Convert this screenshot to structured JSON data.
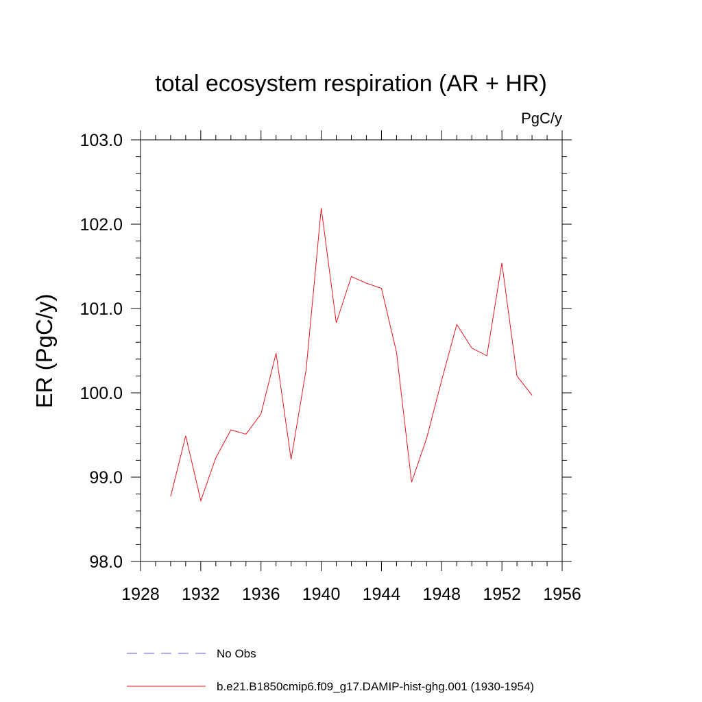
{
  "chart_data": {
    "type": "line",
    "title": "total ecosystem respiration (AR + HR)",
    "units": "PgC/y",
    "ylabel": "ER  (PgC/y)",
    "xlabel": "",
    "xlim": [
      1928,
      1956
    ],
    "ylim": [
      98.0,
      103.0
    ],
    "x_ticks": [
      "1928",
      "1932",
      "1936",
      "1940",
      "1944",
      "1948",
      "1952",
      "1956"
    ],
    "y_ticks": [
      "98.0",
      "99.0",
      "100.0",
      "101.0",
      "102.0",
      "103.0"
    ],
    "grid": false,
    "legend_position": "bottom",
    "series": [
      {
        "name": "b.e21.B1850cmip6.f09_g17.DAMIP-hist-ghg.001 (1930-1954)",
        "color": "#e8141e",
        "style": "solid",
        "x": [
          1930,
          1931,
          1932,
          1933,
          1934,
          1935,
          1936,
          1937,
          1938,
          1939,
          1940,
          1941,
          1942,
          1943,
          1944,
          1945,
          1946,
          1947,
          1948,
          1949,
          1950,
          1951,
          1952,
          1953,
          1954
        ],
        "y": [
          98.77,
          99.49,
          98.72,
          99.23,
          99.56,
          99.51,
          99.75,
          100.47,
          99.21,
          100.28,
          102.19,
          100.83,
          101.38,
          101.3,
          101.24,
          100.48,
          98.94,
          99.46,
          100.15,
          100.81,
          100.53,
          100.44,
          101.54,
          100.2,
          99.97
        ]
      }
    ],
    "legend": [
      {
        "label": "No Obs",
        "color": "#6a5acd",
        "style": "dashed"
      },
      {
        "label": "b.e21.B1850cmip6.f09_g17.DAMIP-hist-ghg.001 (1930-1954)",
        "color": "#e8141e",
        "style": "solid"
      }
    ]
  }
}
